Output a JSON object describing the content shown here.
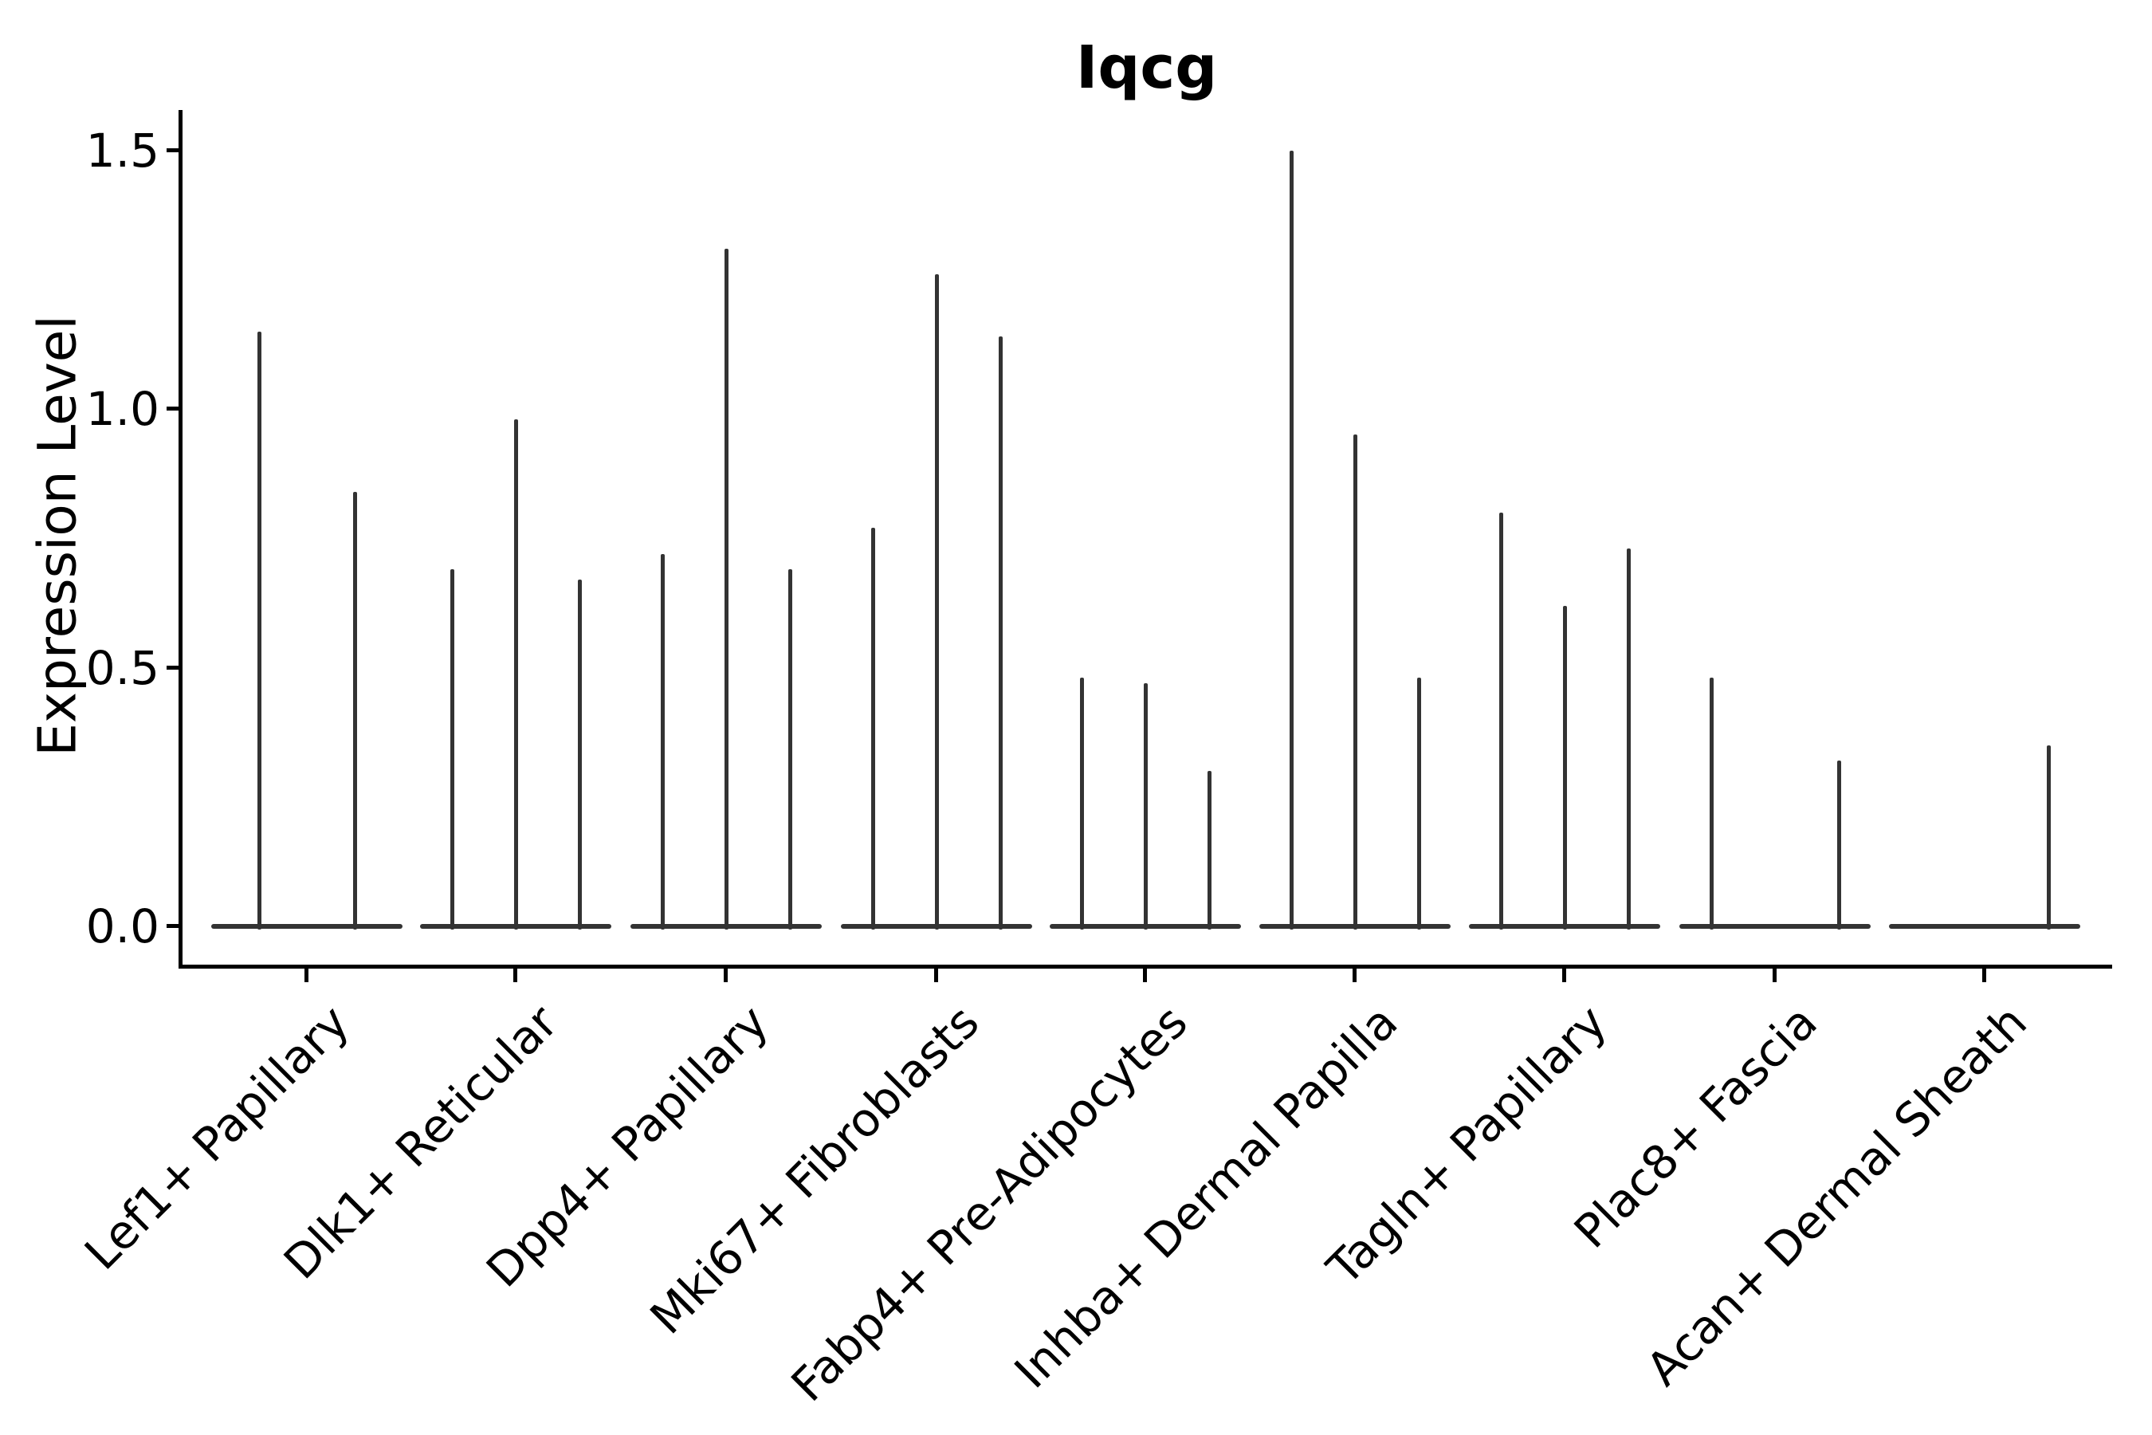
{
  "chart_data": {
    "type": "violin",
    "title": "Iqcg",
    "ylabel": "Expression Level",
    "xlabel": "",
    "ylim": [
      0,
      1.5
    ],
    "y_ticks": [
      "0.0",
      "0.5",
      "1.0",
      "1.5"
    ],
    "y_tick_values": [
      0,
      0.5,
      1.0,
      1.5
    ],
    "x_tick_rotation": 45,
    "grid": false,
    "legend": null,
    "categories": [
      "Lef1+ Papillary",
      "Dlk1+ Reticular",
      "Dpp4+ Papillary",
      "Mki67+ Fibroblasts",
      "Fabp4+ Pre-Adipocytes",
      "Inhba+ Dermal Papilla",
      "Tagln+ Papillary",
      "Plac8+ Fascia",
      "Acan+ Dermal Sheath"
    ],
    "groups": [
      {
        "category": "Lef1+ Papillary",
        "violin_maxima": [
          1.15,
          0.84
        ]
      },
      {
        "category": "Dlk1+ Reticular",
        "violin_maxima": [
          0.69,
          0.98,
          0.67
        ]
      },
      {
        "category": "Dpp4+ Papillary",
        "violin_maxima": [
          0.72,
          1.31,
          0.69
        ]
      },
      {
        "category": "Mki67+ Fibroblasts",
        "violin_maxima": [
          0.77,
          1.26,
          1.14
        ]
      },
      {
        "category": "Fabp4+ Pre-Adipocytes",
        "violin_maxima": [
          0.48,
          0.47,
          0.3
        ]
      },
      {
        "category": "Inhba+ Dermal Papilla",
        "violin_maxima": [
          1.5,
          0.95,
          0.48
        ]
      },
      {
        "category": "Tagln+ Papillary",
        "violin_maxima": [
          0.8,
          0.62,
          0.73
        ]
      },
      {
        "category": "Plac8+ Fascia",
        "violin_maxima": [
          0.48,
          0.0,
          0.32
        ]
      },
      {
        "category": "Acan+ Dermal Sheath",
        "violin_maxima": [
          0.0,
          0.0,
          0.35
        ]
      }
    ],
    "colors": {
      "violin_line": "#333333",
      "axis": "#000000",
      "text": "#000000",
      "background": "#ffffff"
    }
  }
}
